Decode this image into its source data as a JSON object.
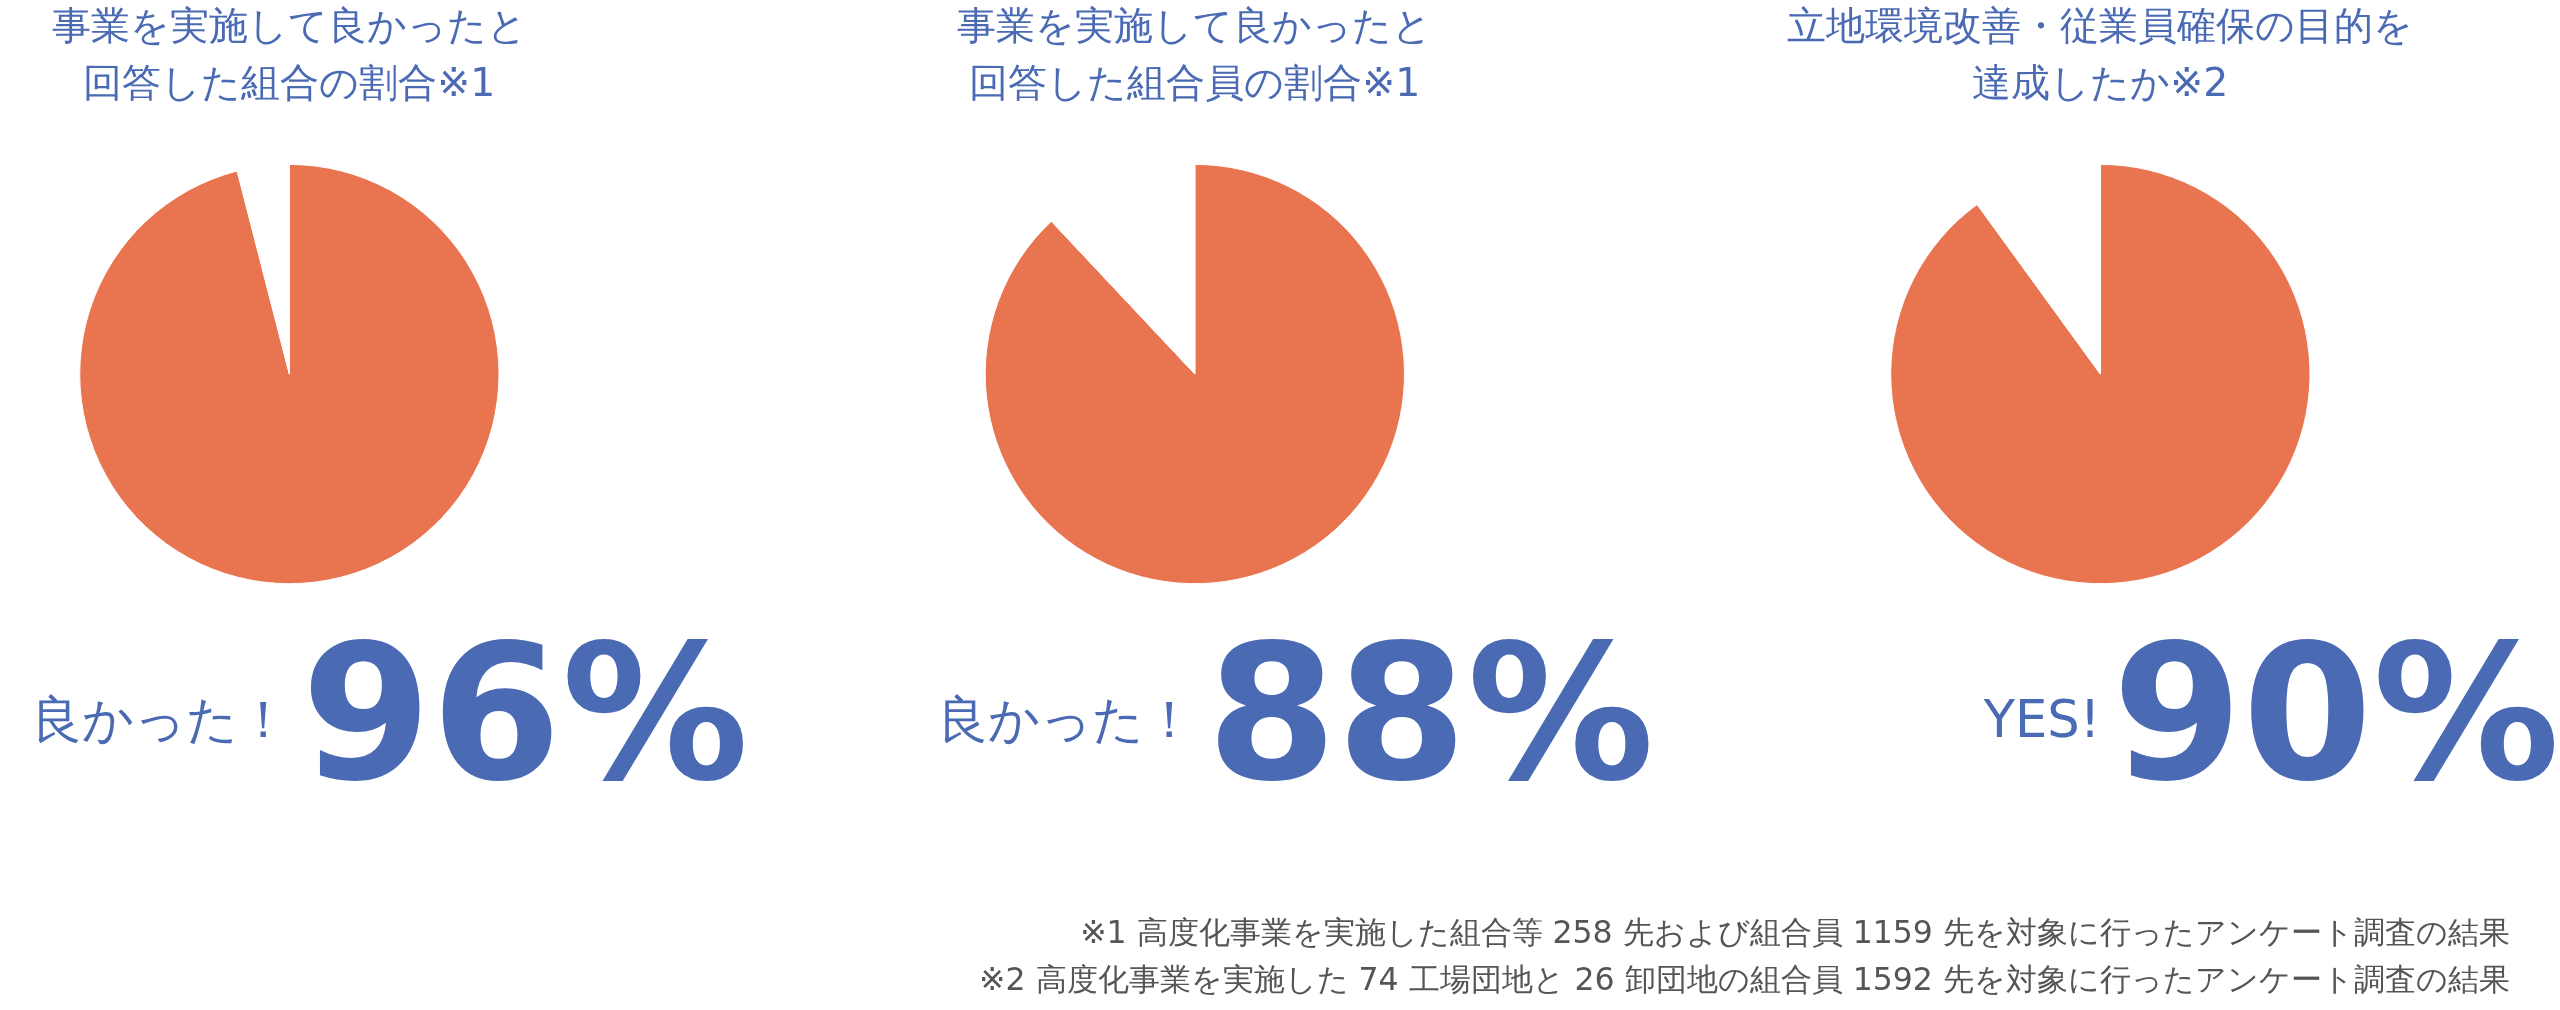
{
  "chart_data": [
    {
      "type": "pie",
      "title": "事業を実施して良かったと回答した組合の割合※1",
      "categories": [
        "良かった！",
        null
      ],
      "values": [
        96,
        4
      ],
      "colors": [
        "#e97550",
        "#ffffff"
      ],
      "value_labels": [
        "96%",
        null
      ]
    },
    {
      "type": "pie",
      "title": "事業を実施して良かったと回答した組合員の割合※1",
      "categories": [
        "良かった！",
        null
      ],
      "values": [
        88,
        12
      ],
      "colors": [
        "#e97550",
        "#ffffff"
      ],
      "value_labels": [
        "88%",
        null
      ]
    },
    {
      "type": "pie",
      "title": "立地環境改善・従業員確保の目的を達成したか※2",
      "categories": [
        "YES!",
        null
      ],
      "values": [
        90,
        10
      ],
      "colors": [
        "#e97550",
        "#ffffff"
      ],
      "value_labels": [
        "90%",
        null
      ],
      "annotations": [
        "※1 高度化事業を実施した組合等 258 先および組合員 1159 先を対象に行ったアンケート調査の結果",
        "※2 高度化事業を実施した 74 工場団地と 26 卸団地の組合員 1592 先を対象に行ったアンケート調査の結果"
      ]
    }
  ]
}
